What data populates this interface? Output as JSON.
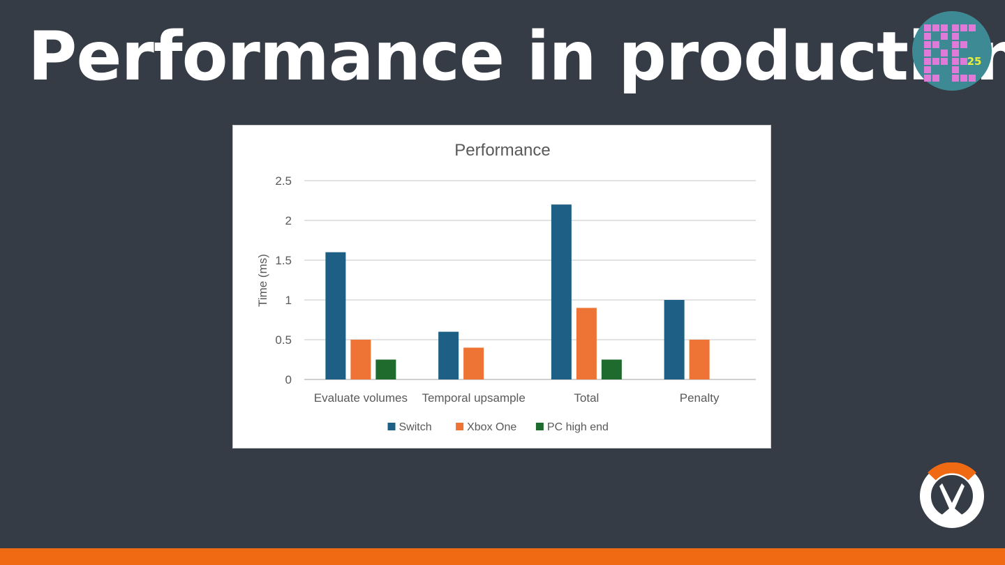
{
  "slide": {
    "title": "Performance in production"
  },
  "colors": {
    "background": "#353c45",
    "accent_bar": "#f06a14",
    "badge_bg": "#3d8a94",
    "badge_block": "#e07ad8",
    "badge_number": "#e6f03c",
    "logo_orange": "#f06a14"
  },
  "badge": {
    "number": "25"
  },
  "chart_data": {
    "type": "bar",
    "title": "Performance",
    "xlabel": "",
    "ylabel": "Time (ms)",
    "ylim": [
      0,
      2.5
    ],
    "yticks": [
      0,
      0.5,
      1,
      1.5,
      2,
      2.5
    ],
    "grid": true,
    "legend_position": "bottom",
    "categories": [
      "Evaluate volumes",
      "Temporal upsample",
      "Total",
      "Penalty"
    ],
    "series": [
      {
        "name": "Switch",
        "color": "#1d5f85",
        "values": [
          1.6,
          0.6,
          2.2,
          1.0
        ]
      },
      {
        "name": "Xbox One",
        "color": "#ed7434",
        "values": [
          0.5,
          0.4,
          0.9,
          0.5
        ]
      },
      {
        "name": "PC high end",
        "color": "#1f6b2e",
        "values": [
          0.25,
          null,
          0.25,
          null
        ]
      }
    ]
  }
}
